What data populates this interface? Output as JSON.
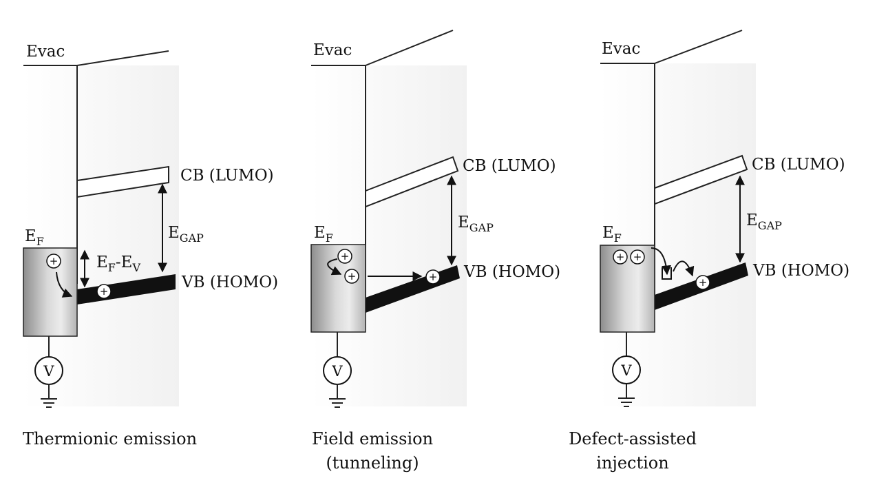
{
  "panels": [
    {
      "evac_label": "Evac",
      "cb_label": "CB (LUMO)",
      "vb_label": "VB (HOMO)",
      "ef_label_main": "E",
      "ef_label_sub": "F",
      "egap_main": "E",
      "egap_sub": "GAP",
      "diff_e1": "E",
      "diff_s1": "F",
      "diff_mid": "-E",
      "diff_s2": "V",
      "voltmeter": "V",
      "hole_symbol": "+",
      "caption_lines": [
        "Thermionic emission"
      ]
    },
    {
      "evac_label": "Evac",
      "cb_label": "CB (LUMO)",
      "vb_label": "VB (HOMO)",
      "ef_label_main": "E",
      "ef_label_sub": "F",
      "egap_main": "E",
      "egap_sub": "GAP",
      "voltmeter": "V",
      "hole_symbol": "+",
      "caption_lines": [
        "Field emission",
        "(tunneling)"
      ]
    },
    {
      "evac_label": "Evac",
      "cb_label": "CB (LUMO)",
      "vb_label": "VB (HOMO)",
      "ef_label_main": "E",
      "ef_label_sub": "F",
      "egap_main": "E",
      "egap_sub": "GAP",
      "voltmeter": "V",
      "hole_symbol": "+",
      "caption_lines": [
        "Defect-assisted",
        "injection"
      ]
    }
  ]
}
